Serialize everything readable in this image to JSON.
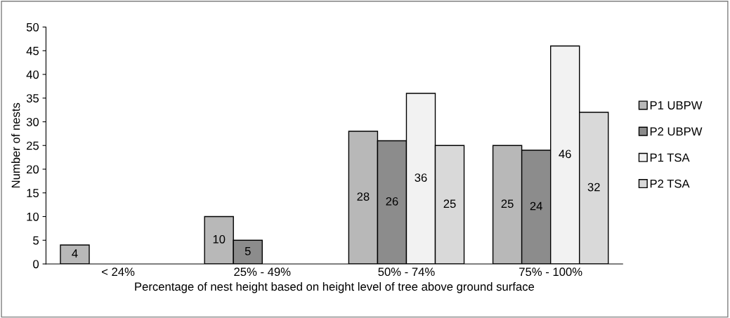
{
  "chart_data": {
    "type": "bar",
    "xlabel": "Percentage of nest height based on height level of tree above ground surface",
    "ylabel": "Number of nests",
    "categories": [
      "< 24%",
      "25% - 49%",
      "50% - 74%",
      "75% - 100%"
    ],
    "series": [
      {
        "name": "P1 UBPW",
        "color": "#b8b8b8",
        "values": [
          4,
          10,
          28,
          25
        ]
      },
      {
        "name": "P2 UBPW",
        "color": "#8c8c8c",
        "values": [
          null,
          5,
          26,
          24
        ]
      },
      {
        "name": "P1 TSA",
        "color": "#f2f2f2",
        "values": [
          null,
          null,
          36,
          46
        ]
      },
      {
        "name": "P2 TSA",
        "color": "#d9d9d9",
        "values": [
          null,
          null,
          25,
          32
        ]
      }
    ],
    "ylim": [
      0,
      50
    ],
    "yticks": [
      0,
      5,
      10,
      15,
      20,
      25,
      30,
      35,
      40,
      45,
      50
    ],
    "grid": false,
    "legend": "right",
    "data_labels": true
  }
}
